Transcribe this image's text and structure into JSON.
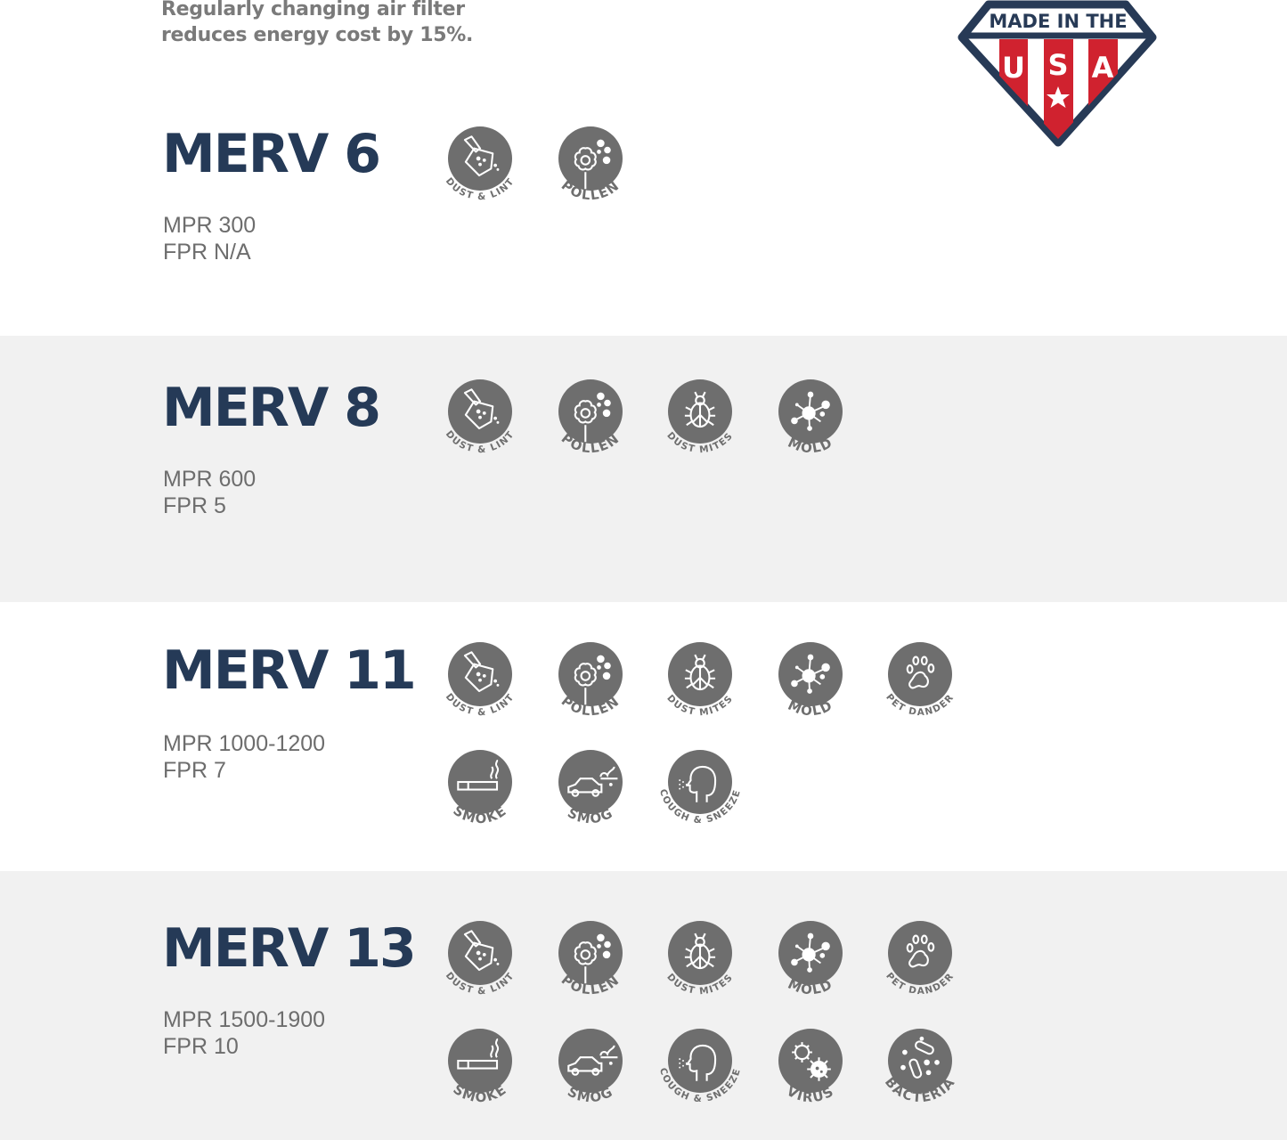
{
  "tagline": {
    "line1": "Regularly changing air filter",
    "line2": "reduces energy cost by 15%."
  },
  "badge": {
    "top_text": "MADE IN THE",
    "letters": [
      "U",
      "S",
      "A"
    ],
    "colors": {
      "navy": "#273a56",
      "red": "#d0222f"
    }
  },
  "colors": {
    "title": "#253a57",
    "icon_bg": "#6e6e6e",
    "band": "#f1f1f1",
    "spec": "#6d6d6d"
  },
  "filters": [
    {
      "title": "MERV 6",
      "mpr": "MPR 300",
      "fpr": "FPR N/A",
      "icons": [
        [
          "dust-lint",
          "DUST & LINT"
        ],
        [
          "pollen",
          "POLLEN"
        ]
      ]
    },
    {
      "title": "MERV 8",
      "mpr": "MPR 600",
      "fpr": "FPR 5",
      "icons": [
        [
          "dust-lint",
          "DUST & LINT"
        ],
        [
          "pollen",
          "POLLEN"
        ],
        [
          "dust-mites",
          "DUST  MITES"
        ],
        [
          "mold",
          "MOLD"
        ]
      ]
    },
    {
      "title": "MERV 11",
      "mpr": "MPR 1000-1200",
      "fpr": "FPR 7",
      "icons": [
        [
          "dust-lint",
          "DUST & LINT"
        ],
        [
          "pollen",
          "POLLEN"
        ],
        [
          "dust-mites",
          "DUST  MITES"
        ],
        [
          "mold",
          "MOLD"
        ],
        [
          "pet-dander",
          "PET  DANDER"
        ],
        [
          "smoke",
          "SMOKE"
        ],
        [
          "smog",
          "SMOG"
        ],
        [
          "cough-sneeze",
          "COUGH & SNEEZE"
        ]
      ]
    },
    {
      "title": "MERV 13",
      "mpr": "MPR 1500-1900",
      "fpr": "FPR 10",
      "icons": [
        [
          "dust-lint",
          "DUST & LINT"
        ],
        [
          "pollen",
          "POLLEN"
        ],
        [
          "dust-mites",
          "DUST  MITES"
        ],
        [
          "mold",
          "MOLD"
        ],
        [
          "pet-dander",
          "PET  DANDER"
        ],
        [
          "smoke",
          "SMOKE"
        ],
        [
          "smog",
          "SMOG"
        ],
        [
          "cough-sneeze",
          "COUGH & SNEEZE"
        ],
        [
          "virus",
          "VIRUS"
        ],
        [
          "bacteria",
          "BACTERIA"
        ]
      ]
    }
  ]
}
